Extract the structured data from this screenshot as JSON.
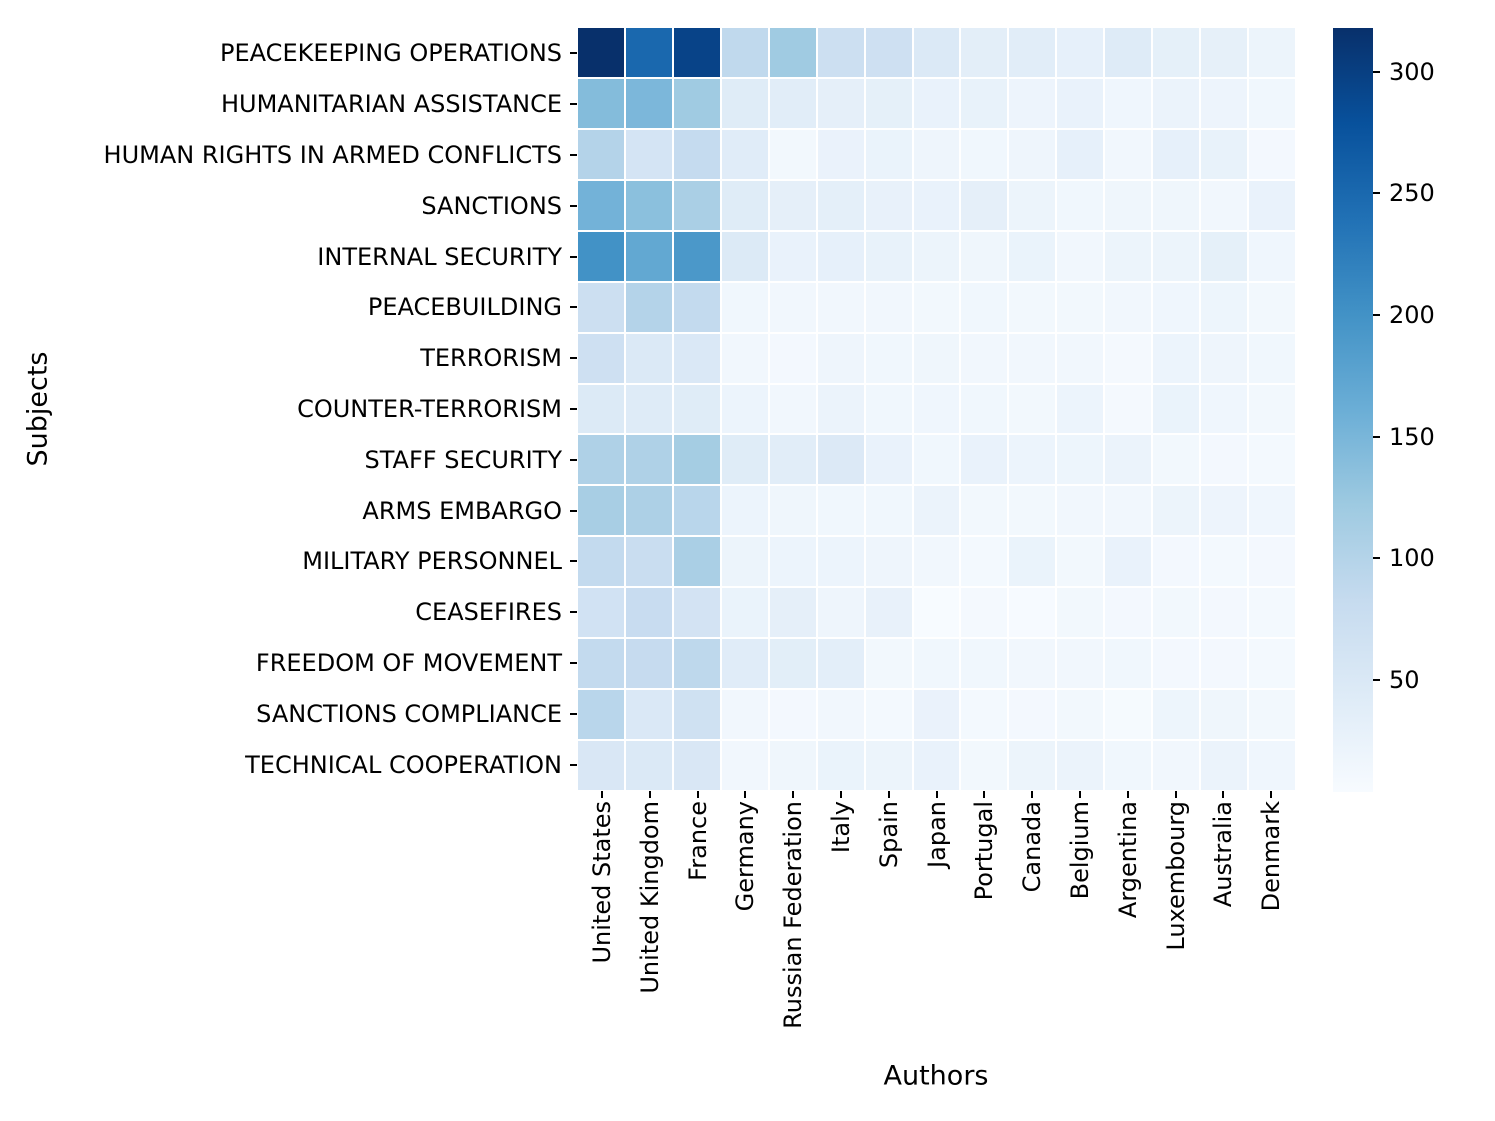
{
  "chart_data": {
    "type": "heatmap",
    "title": "",
    "xlabel": "Authors",
    "ylabel": "Subjects",
    "legend_position": "colorbar-right",
    "grid": false,
    "x_categories": [
      "United States",
      "United Kingdom",
      "France",
      "Germany",
      "Russian Federation",
      "Italy",
      "Spain",
      "Japan",
      "Portugal",
      "Canada",
      "Belgium",
      "Argentina",
      "Luxembourg",
      "Australia",
      "Denmark"
    ],
    "y_categories": [
      "PEACEKEEPING OPERATIONS",
      "HUMANITARIAN ASSISTANCE",
      "HUMAN RIGHTS IN ARMED CONFLICTS",
      "SANCTIONS",
      "INTERNAL SECURITY",
      "PEACEBUILDING",
      "TERRORISM",
      "COUNTER-TERRORISM",
      "STAFF SECURITY",
      "ARMS EMBARGO",
      "MILITARY PERSONNEL",
      "CEASEFIRES",
      "FREEDOM OF MOVEMENT",
      "SANCTIONS COMPLIANCE",
      "TECHNICAL COOPERATION"
    ],
    "values": [
      [
        318,
        250,
        295,
        88,
        120,
        73,
        70,
        48,
        36,
        38,
        30,
        43,
        32,
        31,
        22
      ],
      [
        142,
        148,
        120,
        42,
        38,
        33,
        32,
        26,
        27,
        20,
        26,
        16,
        23,
        20,
        15
      ],
      [
        100,
        60,
        83,
        40,
        12,
        25,
        24,
        18,
        15,
        18,
        30,
        13,
        30,
        27,
        11
      ],
      [
        155,
        136,
        110,
        42,
        33,
        34,
        28,
        26,
        33,
        22,
        15,
        17,
        17,
        14,
        26
      ],
      [
        200,
        170,
        192,
        46,
        26,
        30,
        27,
        22,
        17,
        24,
        13,
        22,
        22,
        32,
        16
      ],
      [
        72,
        100,
        85,
        15,
        14,
        14,
        13,
        12,
        15,
        12,
        12,
        13,
        16,
        19,
        12
      ],
      [
        70,
        48,
        50,
        14,
        11,
        18,
        15,
        17,
        14,
        13,
        13,
        8,
        21,
        18,
        15
      ],
      [
        46,
        44,
        42,
        21,
        13,
        23,
        15,
        16,
        15,
        12,
        21,
        9,
        24,
        16,
        12
      ],
      [
        105,
        105,
        115,
        42,
        38,
        47,
        26,
        15,
        26,
        21,
        19,
        23,
        12,
        11,
        10
      ],
      [
        112,
        107,
        95,
        21,
        17,
        15,
        15,
        23,
        12,
        12,
        13,
        14,
        22,
        20,
        16
      ],
      [
        85,
        77,
        110,
        22,
        21,
        21,
        18,
        14,
        10,
        24,
        12,
        26,
        11,
        10,
        11
      ],
      [
        65,
        80,
        62,
        24,
        33,
        18,
        28,
        4,
        8,
        6,
        12,
        11,
        12,
        11,
        10
      ],
      [
        85,
        82,
        90,
        40,
        37,
        35,
        12,
        15,
        15,
        13,
        14,
        15,
        11,
        11,
        10
      ],
      [
        95,
        50,
        68,
        14,
        11,
        13,
        10,
        25,
        10,
        11,
        12,
        7,
        19,
        17,
        12
      ],
      [
        52,
        48,
        52,
        14,
        17,
        24,
        22,
        26,
        12,
        22,
        23,
        15,
        14,
        23,
        16
      ]
    ],
    "vmin": 4,
    "vmax": 318,
    "colormap_name": "Blues",
    "colormap_stops": [
      "#f7fbff",
      "#deebf7",
      "#c6dbef",
      "#9ecae1",
      "#6baed6",
      "#4292c6",
      "#2171b5",
      "#08519c",
      "#08306b"
    ],
    "colorbar_ticks": [
      50,
      100,
      150,
      200,
      250,
      300
    ],
    "cell_line_color": "#ffffff",
    "background_color": "#ffffff",
    "tick_color": "#000000"
  }
}
